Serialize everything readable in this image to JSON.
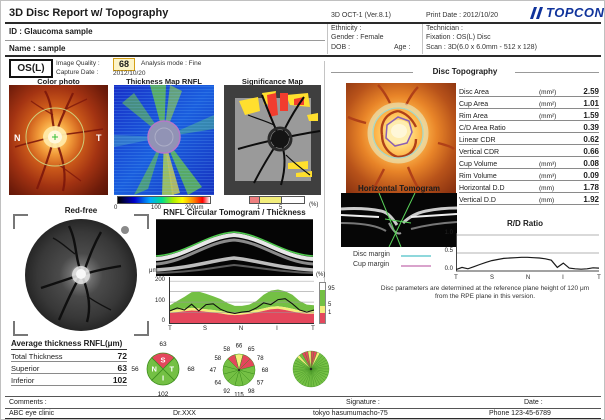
{
  "colors": {
    "normal_green": "#74c044",
    "borderline_yellow": "#f3ee7b",
    "outside_red": "#e4475c",
    "sector_stroke": "#3f8f1f",
    "topcon_blue": "#10339b",
    "disc_margin_cyan": "#8fd8dc",
    "cup_margin_pink": "#d9a3cc"
  },
  "header": {
    "title": "3D Disc Report w/ Topography",
    "device": "3D OCT-1 (Ver.8.1)",
    "print_date_label": "Print Date :",
    "print_date": "2012/10/20",
    "logo": "TOPCON",
    "id_label": "ID :",
    "id": "Glaucoma sample",
    "name_label": "Name :",
    "name": "sample",
    "ethnicity_label": "Ethnicity :",
    "gender_label": "Gender :",
    "gender": "Female",
    "dob_label": "DOB :",
    "age_label": "Age :",
    "technician_label": "Technician :",
    "fixation_label": "Fixation :",
    "fixation": "OS(L) Disc",
    "scan_label": "Scan :",
    "scan": "3D(6.0 x 6.0mm - 512 x 128)"
  },
  "exam": {
    "eye": "OS(L)",
    "image_quality_label": "Image Quality :",
    "image_quality": "68",
    "analysis_mode": "Analysis mode : Fine",
    "capture_date_label": "Capture Date :",
    "capture_date": "2012/10/20"
  },
  "maps": {
    "color_photo_title": "Color photo",
    "thickness_map_title": "Thickness Map RNFL",
    "significance_map_title": "Significance Map",
    "nasal_label": "N",
    "temporal_label": "T",
    "thickness_scale": {
      "min": "0",
      "mid": "100",
      "max": "200μm"
    },
    "significance_scale": {
      "low": "1",
      "high": "5",
      "unit": "(%)"
    }
  },
  "disc_topography": {
    "title": "Disc Topography",
    "rows": [
      {
        "label": "Disc Area",
        "unit": "(mm²)",
        "value": "2.59"
      },
      {
        "label": "Cup Area",
        "unit": "(mm²)",
        "value": "1.01"
      },
      {
        "label": "Rim Area",
        "unit": "(mm²)",
        "value": "1.59"
      },
      {
        "label": "C/D Area Ratio",
        "unit": "",
        "value": "0.39"
      },
      {
        "label": "Linear CDR",
        "unit": "",
        "value": "0.62"
      },
      {
        "label": "Vertical CDR",
        "unit": "",
        "value": "0.66"
      },
      {
        "label": "Cup Volume",
        "unit": "(mm³)",
        "value": "0.08"
      },
      {
        "label": "Rim Volume",
        "unit": "(mm³)",
        "value": "0.09"
      },
      {
        "label": "Horizontal D.D",
        "unit": "(mm)",
        "value": "1.78"
      },
      {
        "label": "Vertical D.D",
        "unit": "(mm)",
        "value": "1.92"
      }
    ],
    "horizontal_tomogram_title": "Horizontal Tomogram",
    "disc_margin_label": "Disc margin",
    "cup_margin_label": "Cup margin",
    "rd_ratio_title": "R/D Ratio",
    "footnote1": "Disc parameters are determined at the reference plane height of 120 μm",
    "footnote2": "from the RPE plane in this version."
  },
  "redfree_title": "Red-free",
  "tomogram": {
    "title": "RNFL Circular Tomogram / Thickness",
    "y_unit": "μm",
    "y_ticks": [
      "200",
      "100",
      "0"
    ]
  },
  "avg_table": {
    "title": "Average thickness RNFL(μm)",
    "rows": [
      {
        "label": "Total Thickness",
        "value": "72"
      },
      {
        "label": "Superior",
        "value": "63"
      },
      {
        "label": "Inferior",
        "value": "102"
      }
    ]
  },
  "footer": {
    "comments_label": "Comments :",
    "signature_label": "Signature :",
    "date_label": "Date :",
    "clinic": "ABC eye clinic",
    "doctor": "Dr.XXX",
    "address": "tokyo hasumumacho-75",
    "phone": "Phone 123-45-6789"
  },
  "chart_data": {
    "rnfl_profile": {
      "type": "area",
      "title": "RNFL Circular Tomogram / Thickness",
      "x_ticks": [
        "T",
        "S",
        "N",
        "I",
        "T"
      ],
      "ylabel": "μm",
      "ylim": [
        0,
        220
      ],
      "y_gridlines": [
        50,
        100,
        150,
        200
      ],
      "profile_um": [
        58,
        72,
        62,
        90,
        58,
        88,
        92,
        66,
        52,
        46,
        52,
        56,
        72,
        96,
        88,
        112,
        116,
        92,
        62,
        52,
        62
      ],
      "band_green_top_um": [
        85,
        105,
        125,
        148,
        150,
        140,
        128,
        115,
        95,
        82,
        82,
        88,
        105,
        135,
        155,
        160,
        152,
        135,
        105,
        88,
        85
      ],
      "band_yellow_top_um": [
        60,
        64,
        68,
        72,
        70,
        66,
        62,
        57,
        52,
        50,
        52,
        56,
        62,
        70,
        78,
        80,
        75,
        68,
        60,
        56,
        56
      ],
      "band_red_top_um": [
        48,
        52,
        56,
        60,
        58,
        54,
        50,
        46,
        40,
        38,
        40,
        44,
        50,
        58,
        66,
        68,
        62,
        55,
        48,
        44,
        44
      ],
      "legend": {
        "unit": "(%)",
        "p95": "95",
        "p5": "5",
        "p1": "1"
      }
    },
    "rd_ratio": {
      "type": "line",
      "title": "R/D Ratio",
      "x_ticks": [
        "T",
        "S",
        "N",
        "I",
        "T"
      ],
      "y_ticks": [
        "1.0",
        "0.5",
        "0.0"
      ],
      "ylim": [
        0,
        1
      ],
      "values": [
        0.04,
        0.1,
        0.06,
        0.12,
        0.18,
        0.24,
        0.29,
        0.32,
        0.35,
        0.36,
        0.37,
        0.38,
        0.38,
        0.37,
        0.36,
        0.34,
        0.3,
        0.1,
        0.22,
        0.08,
        0.06,
        0.05,
        0.06,
        0.09,
        0.08
      ]
    },
    "quadrant_pie": {
      "type": "pie",
      "sectors": [
        {
          "label": "S",
          "value": "63",
          "color": "red"
        },
        {
          "label": "T",
          "value": "68",
          "color": "green"
        },
        {
          "label": "I",
          "value": "102",
          "color": "green"
        },
        {
          "label": "N",
          "value": "56",
          "color": "green"
        }
      ]
    },
    "clock_pie": {
      "type": "pie",
      "sectors": [
        {
          "clock": "12",
          "value": "66",
          "color": "yellow"
        },
        {
          "clock": "1",
          "value": "65",
          "color": "red"
        },
        {
          "clock": "2",
          "value": "78",
          "color": "red"
        },
        {
          "clock": "3",
          "value": "68",
          "color": "green"
        },
        {
          "clock": "4",
          "value": "57",
          "color": "green"
        },
        {
          "clock": "5",
          "value": "98",
          "color": "green"
        },
        {
          "clock": "6",
          "value": "115",
          "color": "green"
        },
        {
          "clock": "7",
          "value": "92",
          "color": "green"
        },
        {
          "clock": "8",
          "value": "64",
          "color": "green"
        },
        {
          "clock": "9",
          "value": "47",
          "color": "green"
        },
        {
          "clock": "10",
          "value": "58",
          "color": "green"
        },
        {
          "clock": "11",
          "value": "58",
          "color": "red"
        }
      ]
    },
    "fine_pie": {
      "type": "pie",
      "sector_count": 36,
      "default_color": "green",
      "overrides": [
        {
          "index": 31,
          "color": "yellow"
        },
        {
          "index": 33,
          "color": "red"
        },
        {
          "index": 34,
          "color": "red"
        },
        {
          "index": 35,
          "color": "yellow"
        },
        {
          "index": 0,
          "color": "red"
        },
        {
          "index": 1,
          "color": "red"
        },
        {
          "index": 2,
          "color": "yellow"
        }
      ]
    }
  }
}
